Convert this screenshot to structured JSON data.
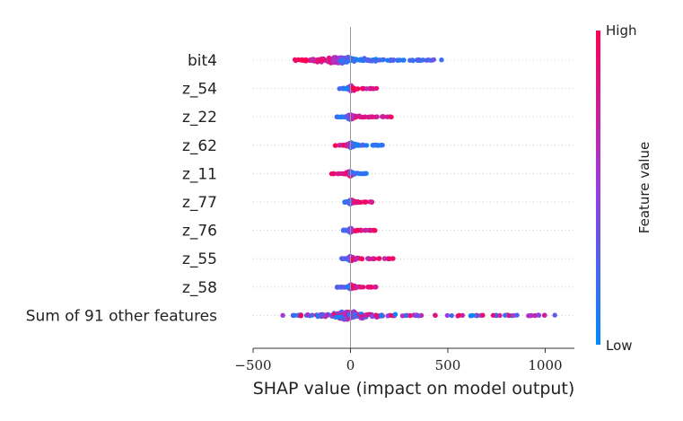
{
  "chart_data": {
    "type": "scatter",
    "subtype": "shap-beeswarm",
    "features": [
      "bit4",
      "z_54",
      "z_22",
      "z_62",
      "z_11",
      "z_77",
      "z_76",
      "z_55",
      "z_58",
      "Sum of 91 other features"
    ],
    "distributions": [
      {
        "min": -290,
        "max": 470,
        "mode": -60,
        "spread_low": 180,
        "spread_high": 200,
        "low_side": "high",
        "high_side": "low"
      },
      {
        "min": -60,
        "max": 140,
        "mode": 0,
        "spread_low": 20,
        "spread_high": 40,
        "low_side": "low",
        "high_side": "high"
      },
      {
        "min": -70,
        "max": 210,
        "mode": 0,
        "spread_low": 20,
        "spread_high": 50,
        "low_side": "low",
        "high_side": "high"
      },
      {
        "min": -80,
        "max": 170,
        "mode": 0,
        "spread_low": 25,
        "spread_high": 40,
        "low_side": "high",
        "high_side": "low"
      },
      {
        "min": -100,
        "max": 85,
        "mode": 0,
        "spread_low": 25,
        "spread_high": 25,
        "low_side": "high",
        "high_side": "low"
      },
      {
        "min": -30,
        "max": 115,
        "mode": 0,
        "spread_low": 10,
        "spread_high": 35,
        "low_side": "low",
        "high_side": "high"
      },
      {
        "min": -40,
        "max": 140,
        "mode": 0,
        "spread_low": 10,
        "spread_high": 40,
        "low_side": "low",
        "high_side": "high"
      },
      {
        "min": -45,
        "max": 220,
        "mode": 0,
        "spread_low": 15,
        "spread_high": 55,
        "low_side": "low",
        "high_side": "high"
      },
      {
        "min": -70,
        "max": 135,
        "mode": 0,
        "spread_low": 15,
        "spread_high": 35,
        "low_side": "low",
        "high_side": "high"
      },
      {
        "min": -430,
        "max": 1060,
        "mode": -20,
        "spread_low": 140,
        "spread_high": 260,
        "low_side": "mixed",
        "high_side": "mixed"
      }
    ],
    "xlabel": "SHAP value (impact on model output)",
    "xlim": [
      -500,
      1150
    ],
    "xticks": [
      -500,
      0,
      500,
      1000
    ],
    "xtick_labels": [
      "−500",
      "0",
      "500",
      "1000"
    ],
    "colorbar": {
      "label": "Feature value",
      "high_label": "High",
      "low_label": "Low",
      "high_color": "#ff0052",
      "low_color": "#008bfb"
    },
    "grid": false,
    "legend": "colorbar-right"
  }
}
